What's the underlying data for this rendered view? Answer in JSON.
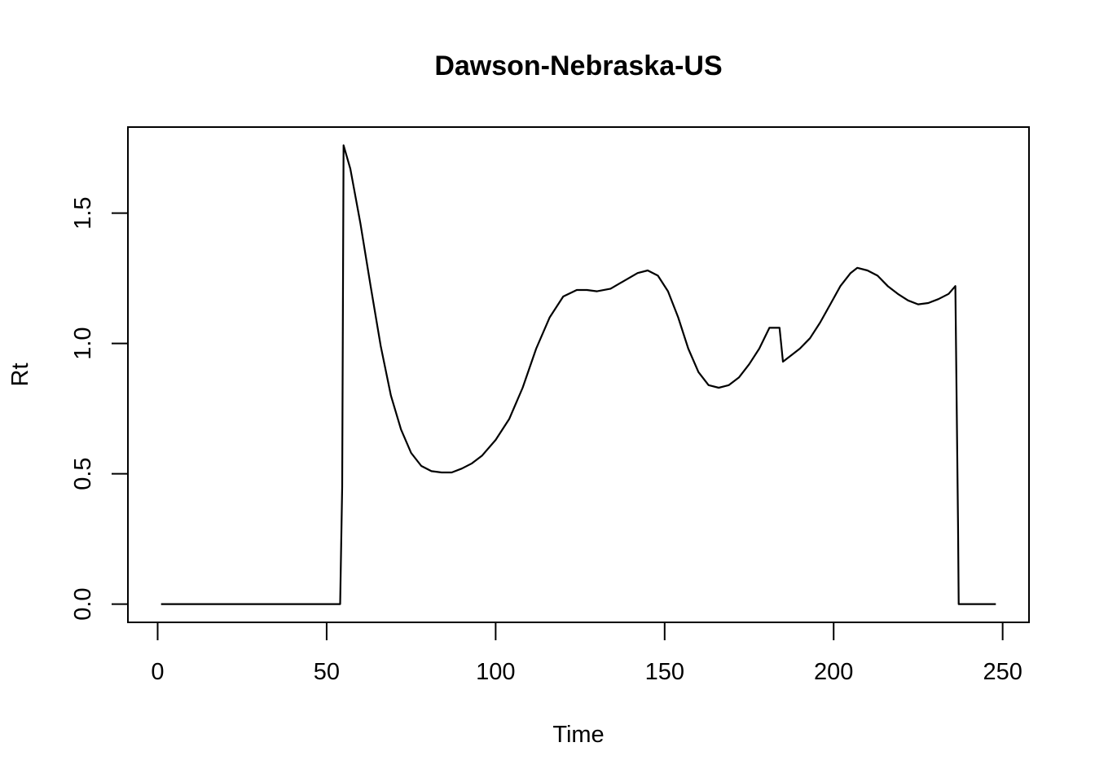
{
  "chart_data": {
    "type": "line",
    "title": "Dawson-Nebraska-US",
    "xlabel": "Time",
    "ylabel": "Rt",
    "xlim": [
      -8.8,
      257.8
    ],
    "ylim": [
      -0.07,
      1.83
    ],
    "xticks": [
      0,
      50,
      100,
      150,
      200,
      250
    ],
    "xtick_labels": [
      "0",
      "50",
      "100",
      "150",
      "200",
      "250"
    ],
    "yticks": [
      0.0,
      0.5,
      1.0,
      1.5
    ],
    "ytick_labels": [
      "0.0",
      "0.5",
      "1.0",
      "1.5"
    ],
    "grid": false,
    "legend": "none",
    "line_color": "#000000",
    "series": [
      {
        "x": [
          1,
          54,
          54.6,
          55,
          57,
          60,
          63,
          66,
          69,
          72,
          75,
          78,
          81,
          84,
          87,
          90,
          93,
          96,
          100,
          104,
          108,
          112,
          116,
          120,
          124,
          127,
          130,
          134,
          138,
          142,
          145,
          148,
          151,
          154,
          157,
          160,
          163,
          166,
          169,
          172,
          175,
          178,
          181,
          184,
          185,
          187,
          190,
          193,
          196,
          199,
          202,
          205,
          207,
          210,
          213,
          216,
          219,
          222,
          225,
          228,
          231,
          234,
          236,
          236.8,
          237,
          248
        ],
        "y": [
          0,
          0,
          0.45,
          1.76,
          1.67,
          1.46,
          1.22,
          0.99,
          0.8,
          0.67,
          0.58,
          0.53,
          0.51,
          0.505,
          0.505,
          0.52,
          0.54,
          0.57,
          0.63,
          0.71,
          0.83,
          0.98,
          1.1,
          1.18,
          1.205,
          1.205,
          1.2,
          1.21,
          1.24,
          1.27,
          1.28,
          1.26,
          1.2,
          1.1,
          0.98,
          0.89,
          0.84,
          0.83,
          0.84,
          0.87,
          0.92,
          0.98,
          1.06,
          1.06,
          0.93,
          0.95,
          0.98,
          1.02,
          1.08,
          1.15,
          1.22,
          1.27,
          1.29,
          1.28,
          1.26,
          1.22,
          1.19,
          1.165,
          1.15,
          1.155,
          1.17,
          1.19,
          1.22,
          0.3,
          0,
          0
        ]
      }
    ]
  }
}
